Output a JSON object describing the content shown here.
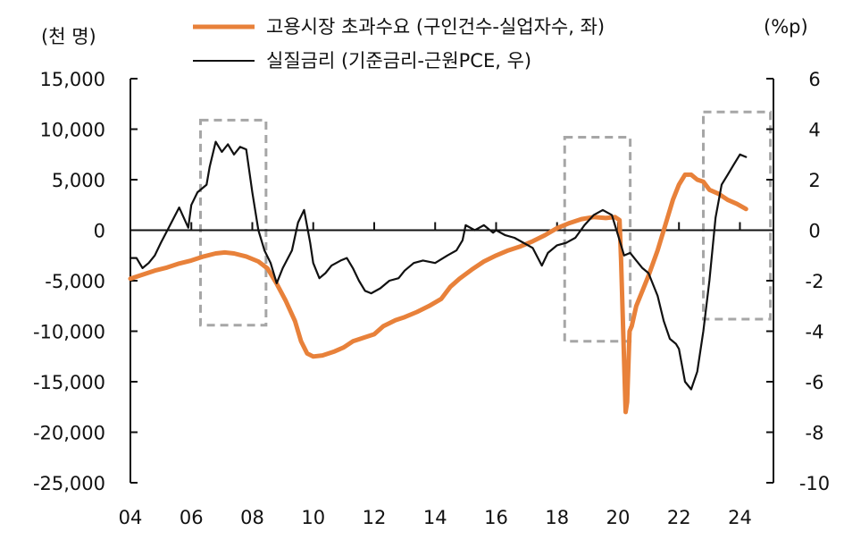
{
  "chart_data": {
    "type": "line",
    "left_axis": {
      "unit_label": "(천 명)",
      "range": [
        -25000,
        15000
      ],
      "ticks": [
        15000,
        10000,
        5000,
        0,
        -5000,
        -10000,
        -15000,
        -20000,
        -25000
      ],
      "tick_labels": [
        "15,000",
        "10,000",
        "5,000",
        "0",
        "-5,000",
        "-10,000",
        "-15,000",
        "-20,000",
        "-25,000"
      ]
    },
    "right_axis": {
      "unit_label": "(%p)",
      "range": [
        -10,
        6
      ],
      "ticks": [
        6,
        4,
        2,
        0,
        -2,
        -4,
        -6,
        -8,
        -10
      ],
      "tick_labels": [
        "6",
        "4",
        "2",
        "0",
        "-2",
        "-4",
        "-6",
        "-8",
        "-10"
      ]
    },
    "x_axis": {
      "range": [
        2004,
        2025.1
      ],
      "ticks": [
        2004,
        2006,
        2008,
        2010,
        2012,
        2014,
        2016,
        2018,
        2020,
        2022,
        2024
      ],
      "tick_labels": [
        "04",
        "06",
        "08",
        "10",
        "12",
        "14",
        "16",
        "18",
        "20",
        "22",
        "24"
      ]
    },
    "series": [
      {
        "name": "고용시장 초과수요 (구인건수-실업자수, 좌)",
        "axis": "left",
        "color": "#E8813A",
        "points": [
          [
            2004.0,
            -4800
          ],
          [
            2004.4,
            -4400
          ],
          [
            2004.8,
            -4000
          ],
          [
            2005.2,
            -3700
          ],
          [
            2005.6,
            -3300
          ],
          [
            2006.0,
            -3000
          ],
          [
            2006.4,
            -2600
          ],
          [
            2006.8,
            -2300
          ],
          [
            2007.1,
            -2200
          ],
          [
            2007.4,
            -2300
          ],
          [
            2007.8,
            -2600
          ],
          [
            2008.2,
            -3100
          ],
          [
            2008.5,
            -3800
          ],
          [
            2008.8,
            -5300
          ],
          [
            2009.1,
            -7000
          ],
          [
            2009.4,
            -9000
          ],
          [
            2009.6,
            -11000
          ],
          [
            2009.8,
            -12200
          ],
          [
            2010.0,
            -12500
          ],
          [
            2010.3,
            -12400
          ],
          [
            2010.7,
            -12000
          ],
          [
            2011.0,
            -11600
          ],
          [
            2011.3,
            -11000
          ],
          [
            2011.7,
            -10600
          ],
          [
            2012.0,
            -10300
          ],
          [
            2012.3,
            -9500
          ],
          [
            2012.7,
            -8900
          ],
          [
            2013.0,
            -8600
          ],
          [
            2013.4,
            -8100
          ],
          [
            2013.8,
            -7500
          ],
          [
            2014.2,
            -6800
          ],
          [
            2014.5,
            -5600
          ],
          [
            2014.8,
            -4800
          ],
          [
            2015.2,
            -3900
          ],
          [
            2015.6,
            -3100
          ],
          [
            2016.0,
            -2500
          ],
          [
            2016.4,
            -2000
          ],
          [
            2016.8,
            -1600
          ],
          [
            2017.2,
            -1100
          ],
          [
            2017.6,
            -500
          ],
          [
            2018.0,
            200
          ],
          [
            2018.4,
            700
          ],
          [
            2018.8,
            1100
          ],
          [
            2019.2,
            1300
          ],
          [
            2019.6,
            1200
          ],
          [
            2019.9,
            1300
          ],
          [
            2020.05,
            1000
          ],
          [
            2020.1,
            -3000
          ],
          [
            2020.2,
            -13000
          ],
          [
            2020.25,
            -18000
          ],
          [
            2020.3,
            -17000
          ],
          [
            2020.38,
            -10000
          ],
          [
            2020.45,
            -9500
          ],
          [
            2020.6,
            -7500
          ],
          [
            2020.8,
            -6000
          ],
          [
            2021.0,
            -4500
          ],
          [
            2021.3,
            -2000
          ],
          [
            2021.6,
            1000
          ],
          [
            2021.8,
            3000
          ],
          [
            2022.0,
            4500
          ],
          [
            2022.2,
            5500
          ],
          [
            2022.4,
            5500
          ],
          [
            2022.6,
            5000
          ],
          [
            2022.8,
            4800
          ],
          [
            2023.0,
            4000
          ],
          [
            2023.3,
            3600
          ],
          [
            2023.6,
            3000
          ],
          [
            2023.9,
            2600
          ],
          [
            2024.2,
            2100
          ]
        ]
      },
      {
        "name": "실질금리 (기준금리-근원PCE, 우)",
        "axis": "right",
        "color": "#111111",
        "points": [
          [
            2004.0,
            -1.1
          ],
          [
            2004.2,
            -1.1
          ],
          [
            2004.4,
            -1.5
          ],
          [
            2004.6,
            -1.3
          ],
          [
            2004.8,
            -1.0
          ],
          [
            2005.0,
            -0.5
          ],
          [
            2005.3,
            0.2
          ],
          [
            2005.6,
            0.9
          ],
          [
            2005.9,
            0.1
          ],
          [
            2006.0,
            1.0
          ],
          [
            2006.2,
            1.5
          ],
          [
            2006.5,
            1.8
          ],
          [
            2006.6,
            2.5
          ],
          [
            2006.8,
            3.5
          ],
          [
            2007.0,
            3.1
          ],
          [
            2007.2,
            3.4
          ],
          [
            2007.4,
            3.0
          ],
          [
            2007.6,
            3.3
          ],
          [
            2007.8,
            3.2
          ],
          [
            2008.0,
            1.5
          ],
          [
            2008.2,
            0.0
          ],
          [
            2008.4,
            -0.8
          ],
          [
            2008.6,
            -1.3
          ],
          [
            2008.8,
            -2.1
          ],
          [
            2009.0,
            -1.5
          ],
          [
            2009.3,
            -0.8
          ],
          [
            2009.5,
            0.3
          ],
          [
            2009.7,
            0.8
          ],
          [
            2009.9,
            -0.5
          ],
          [
            2010.0,
            -1.3
          ],
          [
            2010.2,
            -1.9
          ],
          [
            2010.4,
            -1.7
          ],
          [
            2010.6,
            -1.4
          ],
          [
            2010.9,
            -1.2
          ],
          [
            2011.1,
            -1.1
          ],
          [
            2011.3,
            -1.5
          ],
          [
            2011.5,
            -2.0
          ],
          [
            2011.7,
            -2.4
          ],
          [
            2011.9,
            -2.5
          ],
          [
            2012.2,
            -2.3
          ],
          [
            2012.5,
            -2.0
          ],
          [
            2012.8,
            -1.9
          ],
          [
            2013.0,
            -1.6
          ],
          [
            2013.3,
            -1.3
          ],
          [
            2013.6,
            -1.2
          ],
          [
            2014.0,
            -1.3
          ],
          [
            2014.4,
            -1.0
          ],
          [
            2014.7,
            -0.8
          ],
          [
            2014.9,
            -0.4
          ],
          [
            2015.0,
            0.2
          ],
          [
            2015.3,
            0.0
          ],
          [
            2015.6,
            0.2
          ],
          [
            2015.9,
            -0.1
          ],
          [
            2016.0,
            0.0
          ],
          [
            2016.3,
            -0.2
          ],
          [
            2016.6,
            -0.3
          ],
          [
            2016.9,
            -0.5
          ],
          [
            2017.2,
            -0.7
          ],
          [
            2017.5,
            -1.4
          ],
          [
            2017.7,
            -0.9
          ],
          [
            2018.0,
            -0.6
          ],
          [
            2018.3,
            -0.5
          ],
          [
            2018.6,
            -0.3
          ],
          [
            2018.9,
            0.2
          ],
          [
            2019.2,
            0.6
          ],
          [
            2019.5,
            0.8
          ],
          [
            2019.8,
            0.6
          ],
          [
            2020.0,
            -0.2
          ],
          [
            2020.2,
            -1.0
          ],
          [
            2020.4,
            -0.9
          ],
          [
            2020.6,
            -1.2
          ],
          [
            2020.8,
            -1.5
          ],
          [
            2021.0,
            -1.7
          ],
          [
            2021.3,
            -2.6
          ],
          [
            2021.5,
            -3.6
          ],
          [
            2021.7,
            -4.3
          ],
          [
            2021.9,
            -4.5
          ],
          [
            2022.0,
            -4.7
          ],
          [
            2022.2,
            -6.0
          ],
          [
            2022.4,
            -6.3
          ],
          [
            2022.6,
            -5.6
          ],
          [
            2022.8,
            -4.0
          ],
          [
            2023.0,
            -2.0
          ],
          [
            2023.2,
            0.5
          ],
          [
            2023.4,
            1.8
          ],
          [
            2023.6,
            2.2
          ],
          [
            2023.8,
            2.6
          ],
          [
            2024.0,
            3.0
          ],
          [
            2024.2,
            2.9
          ]
        ]
      }
    ],
    "highlight_boxes": [
      {
        "x": [
          2006.3,
          2008.45
        ],
        "left_y": [
          -9400,
          10900
        ]
      },
      {
        "x": [
          2018.25,
          2020.4
        ],
        "left_y": [
          -11000,
          9200
        ]
      },
      {
        "x": [
          2022.8,
          2025.0
        ],
        "left_y": [
          -8800,
          11700
        ]
      }
    ]
  }
}
